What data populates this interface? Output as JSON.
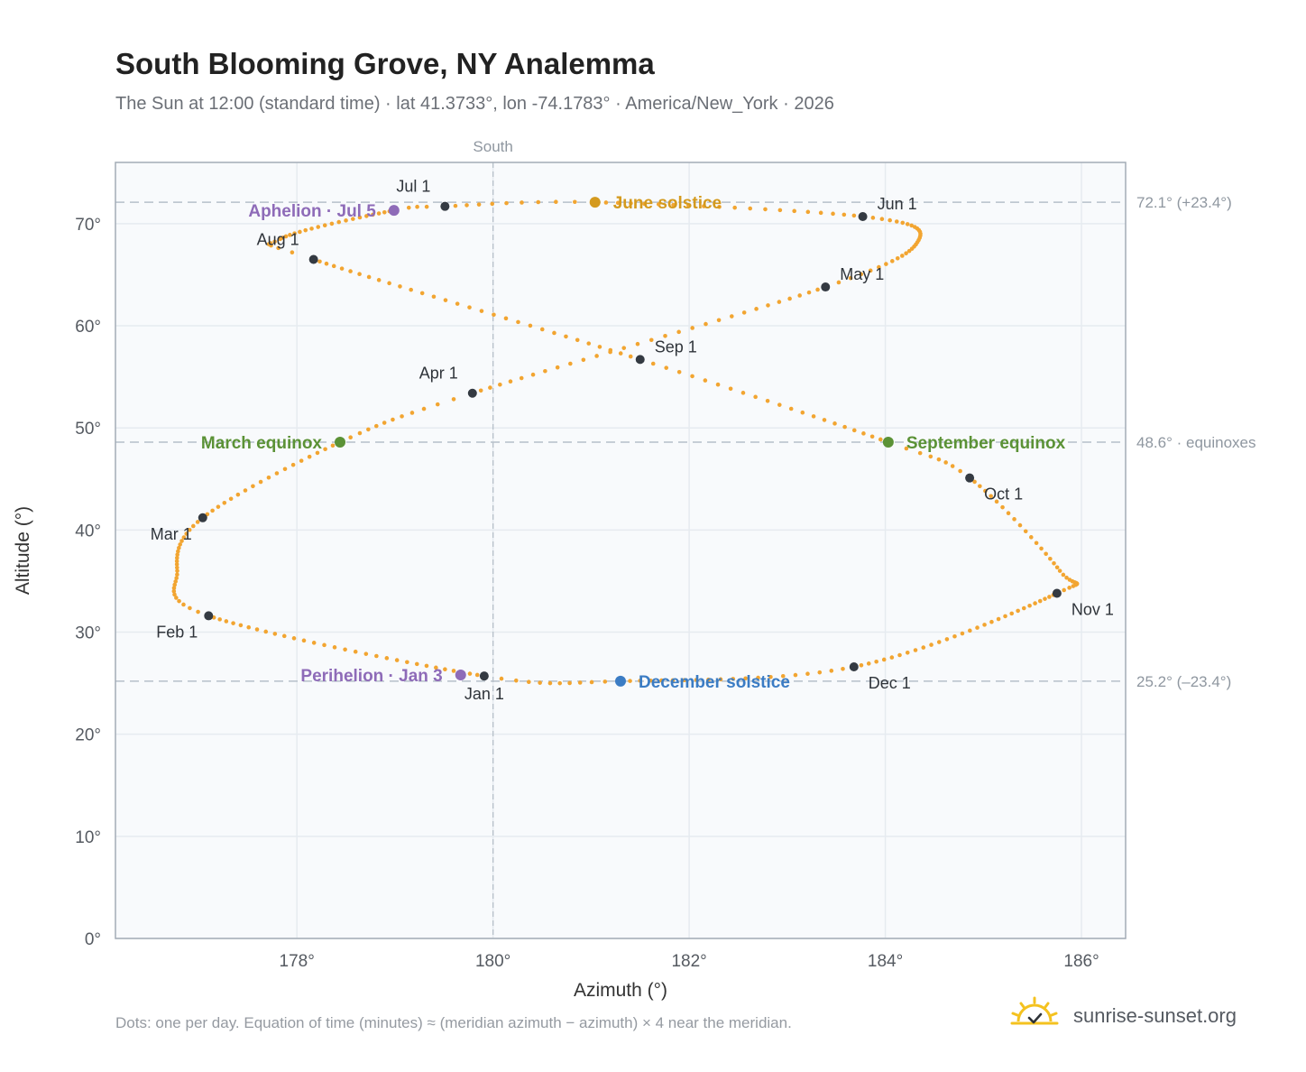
{
  "title": "South Blooming Grove, NY Analemma",
  "subtitle": "The Sun at 12:00 (standard time) · lat 41.3733°, lon -74.1783° · America/New_York · 2026",
  "footnote": "Dots: one per day. Equation of time (minutes) ≈ (meridian azimuth − azimuth) × 4 near the meridian.",
  "brand": {
    "text": "sunrise-sunset.org",
    "icon": "sun-check-icon"
  },
  "colors": {
    "path": "#f2a531",
    "month_marker": "#343a42",
    "equinox": "#5b9236",
    "june_solstice": "#d49a1e",
    "december_solstice": "#3b7cc4",
    "aphelion_perihelion": "#8e6bb8",
    "plot_background": "#f8fafc",
    "grid": "#e6ebf0",
    "reference_line": "#b6c0c9"
  },
  "chart_data": {
    "type": "scatter",
    "title": "South Blooming Grove, NY Analemma",
    "xlabel": "Azimuth (°)",
    "ylabel": "Altitude (°)",
    "xlim": [
      176.15,
      186.45
    ],
    "ylim": [
      0,
      76
    ],
    "x_ticks": [
      178,
      180,
      182,
      184,
      186
    ],
    "x_tick_labels": [
      "178°",
      "180°",
      "182°",
      "184°",
      "186°"
    ],
    "y_ticks": [
      0,
      10,
      20,
      30,
      40,
      50,
      60,
      70
    ],
    "y_tick_labels": [
      "0°",
      "10°",
      "20°",
      "30°",
      "40°",
      "50°",
      "60°",
      "70°"
    ],
    "grid": true,
    "meridian": {
      "x": 180,
      "label": "South"
    },
    "reference_lines": [
      {
        "y": 72.1,
        "label": "72.1° (+23.4°)"
      },
      {
        "y": 48.6,
        "label": "48.6° · equinoxes"
      },
      {
        "y": 25.2,
        "label": "25.2° (–23.4°)"
      }
    ],
    "daily_path_anchors": [
      {
        "day": 1,
        "az": 179.91,
        "alt": 25.7
      },
      {
        "day": 32,
        "az": 177.1,
        "alt": 31.6
      },
      {
        "day": 45,
        "az": 176.78,
        "alt": 36.0
      },
      {
        "day": 60,
        "az": 177.04,
        "alt": 41.2
      },
      {
        "day": 79,
        "az": 178.44,
        "alt": 48.6
      },
      {
        "day": 91,
        "az": 179.79,
        "alt": 53.4
      },
      {
        "day": 121,
        "az": 183.39,
        "alt": 63.8
      },
      {
        "day": 137,
        "az": 184.34,
        "alt": 68.4
      },
      {
        "day": 152,
        "az": 183.77,
        "alt": 70.7
      },
      {
        "day": 172,
        "az": 181.04,
        "alt": 72.1
      },
      {
        "day": 182,
        "az": 179.51,
        "alt": 71.7
      },
      {
        "day": 186,
        "az": 178.99,
        "alt": 71.3
      },
      {
        "day": 206,
        "az": 177.83,
        "alt": 68.5
      },
      {
        "day": 213,
        "az": 178.17,
        "alt": 66.5
      },
      {
        "day": 244,
        "az": 181.5,
        "alt": 56.7
      },
      {
        "day": 266,
        "az": 184.03,
        "alt": 48.6
      },
      {
        "day": 274,
        "az": 184.86,
        "alt": 45.1
      },
      {
        "day": 292,
        "az": 185.78,
        "alt": 36.0
      },
      {
        "day": 305,
        "az": 185.75,
        "alt": 33.8
      },
      {
        "day": 335,
        "az": 183.68,
        "alt": 26.6
      },
      {
        "day": 355,
        "az": 181.3,
        "alt": 25.2
      },
      {
        "day": 366,
        "az": 179.91,
        "alt": 25.7
      }
    ],
    "month_markers": [
      {
        "label": "Jan 1",
        "az": 179.91,
        "alt": 25.7,
        "pos": "below"
      },
      {
        "label": "Feb 1",
        "az": 177.1,
        "alt": 31.6,
        "pos": "below-left"
      },
      {
        "label": "Mar 1",
        "az": 177.04,
        "alt": 41.2,
        "pos": "below-left"
      },
      {
        "label": "Apr 1",
        "az": 179.79,
        "alt": 53.4,
        "pos": "above-left"
      },
      {
        "label": "May 1",
        "az": 183.39,
        "alt": 63.8,
        "pos": "above-right"
      },
      {
        "label": "Jun 1",
        "az": 183.77,
        "alt": 70.7,
        "pos": "above-right"
      },
      {
        "label": "Jul 1",
        "az": 179.51,
        "alt": 71.7,
        "pos": "above-left"
      },
      {
        "label": "Aug 1",
        "az": 178.17,
        "alt": 66.5,
        "pos": "above-left"
      },
      {
        "label": "Sep 1",
        "az": 181.5,
        "alt": 56.7,
        "pos": "above-right"
      },
      {
        "label": "Oct 1",
        "az": 184.86,
        "alt": 45.1,
        "pos": "below-right"
      },
      {
        "label": "Nov 1",
        "az": 185.75,
        "alt": 33.8,
        "pos": "below-right"
      },
      {
        "label": "Dec 1",
        "az": 183.68,
        "alt": 26.6,
        "pos": "below-right"
      }
    ],
    "events": [
      {
        "label": "March equinox",
        "az": 178.44,
        "alt": 48.6,
        "kind": "equinox",
        "side": "left"
      },
      {
        "label": "September equinox",
        "az": 184.03,
        "alt": 48.6,
        "kind": "equinox",
        "side": "right"
      },
      {
        "label": "June solstice",
        "az": 181.04,
        "alt": 72.1,
        "kind": "june_solstice",
        "side": "right"
      },
      {
        "label": "December solstice",
        "az": 181.3,
        "alt": 25.2,
        "kind": "december_solstice",
        "side": "right"
      },
      {
        "label": "Aphelion · Jul 5",
        "az": 178.99,
        "alt": 71.3,
        "kind": "aphelion_perihelion",
        "side": "left"
      },
      {
        "label": "Perihelion · Jan 3",
        "az": 179.67,
        "alt": 25.8,
        "kind": "aphelion_perihelion",
        "side": "left"
      }
    ]
  }
}
